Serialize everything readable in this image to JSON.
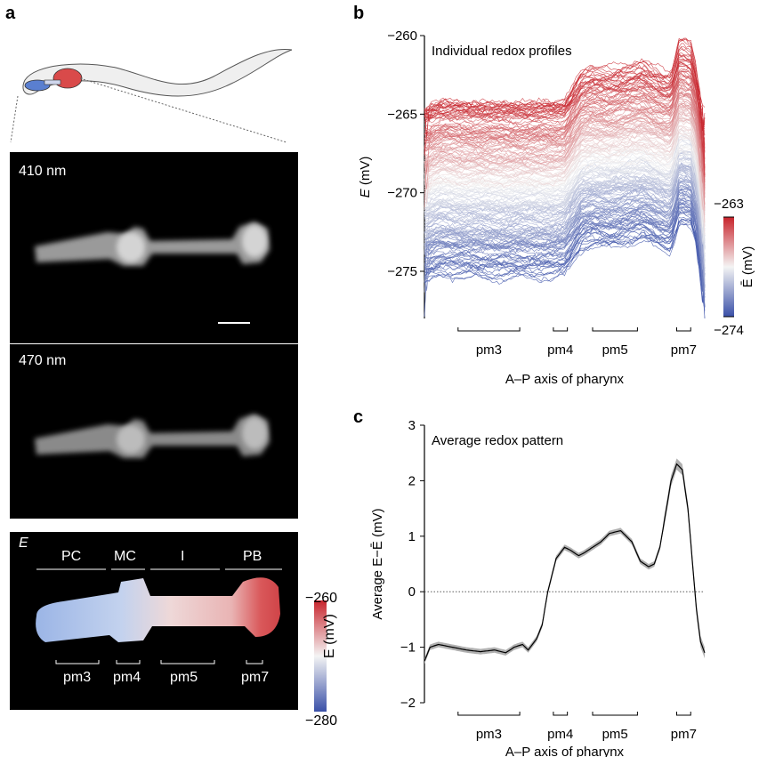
{
  "panel_letters": {
    "a": "a",
    "b": "b",
    "c": "c"
  },
  "panel_a": {
    "image_410_label": "410 nm",
    "image_470_label": "470 nm",
    "map_label": "E",
    "regions": [
      "PC",
      "MC",
      "I",
      "PB"
    ],
    "muscles": [
      "pm3",
      "pm4",
      "pm5",
      "pm7"
    ],
    "colorbar": {
      "max_label": "−260",
      "min_label": "−280",
      "label": "E (mV)",
      "max": -260,
      "min": -280
    }
  },
  "colors": {
    "red": "#c8242c",
    "white": "#f4f4f4",
    "blue": "#3a50a8",
    "mean_line": "#000000",
    "ci_band": "#b0b0b0"
  },
  "chart_data": [
    {
      "type": "line",
      "panel": "b",
      "title": "Individual redox profiles",
      "xlabel": "A–P axis of pharynx",
      "ylabel": "E (mV)",
      "ylim": [
        -278,
        -260
      ],
      "yticks": [
        -260,
        -265,
        -270,
        -275
      ],
      "ytick_labels": [
        "−260",
        "−265",
        "−270",
        "−275"
      ],
      "x_segments": [
        "pm3",
        "pm4",
        "pm5",
        "pm7"
      ],
      "n_profiles": 200,
      "profile_offset_range": [
        -274,
        -263
      ],
      "base_pattern": {
        "x": [
          0,
          0.06,
          0.12,
          0.3,
          0.4,
          0.46,
          0.5,
          0.56,
          0.6,
          0.66,
          0.78,
          0.86,
          0.88,
          0.91,
          0.95,
          1.0
        ],
        "y": [
          -1.3,
          -0.9,
          -1.0,
          -1.05,
          -1.0,
          -1.0,
          -0.9,
          0.6,
          0.8,
          0.7,
          1.1,
          0.5,
          0.5,
          2.2,
          2.0,
          -1.2
        ]
      },
      "colorbar": {
        "label": "Ē (mV)",
        "max": -263,
        "min": -274,
        "max_label": "−263",
        "min_label": "−274"
      }
    },
    {
      "type": "line",
      "panel": "c",
      "title": "Average redox pattern",
      "xlabel": "A–P axis of pharynx",
      "ylabel": "Average E−Ē (mV)",
      "ylim": [
        -2,
        3
      ],
      "yticks": [
        -2,
        -1,
        0,
        1,
        2,
        3
      ],
      "ytick_labels": [
        "−2",
        "−1",
        "0",
        "1",
        "2",
        "3"
      ],
      "x_segments": [
        "pm3",
        "pm4",
        "pm5",
        "pm7"
      ],
      "series": [
        {
          "x": [
            0,
            0.02,
            0.05,
            0.1,
            0.15,
            0.2,
            0.25,
            0.29,
            0.32,
            0.35,
            0.37,
            0.4,
            0.42,
            0.44,
            0.47,
            0.5,
            0.52,
            0.55,
            0.57,
            0.6,
            0.63,
            0.66,
            0.7,
            0.74,
            0.77,
            0.8,
            0.82,
            0.84,
            0.86,
            0.88,
            0.9,
            0.92,
            0.94,
            0.955,
            0.97,
            0.985,
            1.0
          ],
          "y": [
            -1.25,
            -1.0,
            -0.95,
            -1.0,
            -1.05,
            -1.08,
            -1.05,
            -1.1,
            -1.0,
            -0.95,
            -1.05,
            -0.85,
            -0.6,
            0.0,
            0.6,
            0.8,
            0.75,
            0.65,
            0.7,
            0.8,
            0.9,
            1.05,
            1.1,
            0.9,
            0.55,
            0.45,
            0.5,
            0.8,
            1.4,
            2.0,
            2.3,
            2.2,
            1.5,
            0.6,
            -0.3,
            -0.9,
            -1.1
          ]
        }
      ],
      "zero_line": 0
    }
  ]
}
